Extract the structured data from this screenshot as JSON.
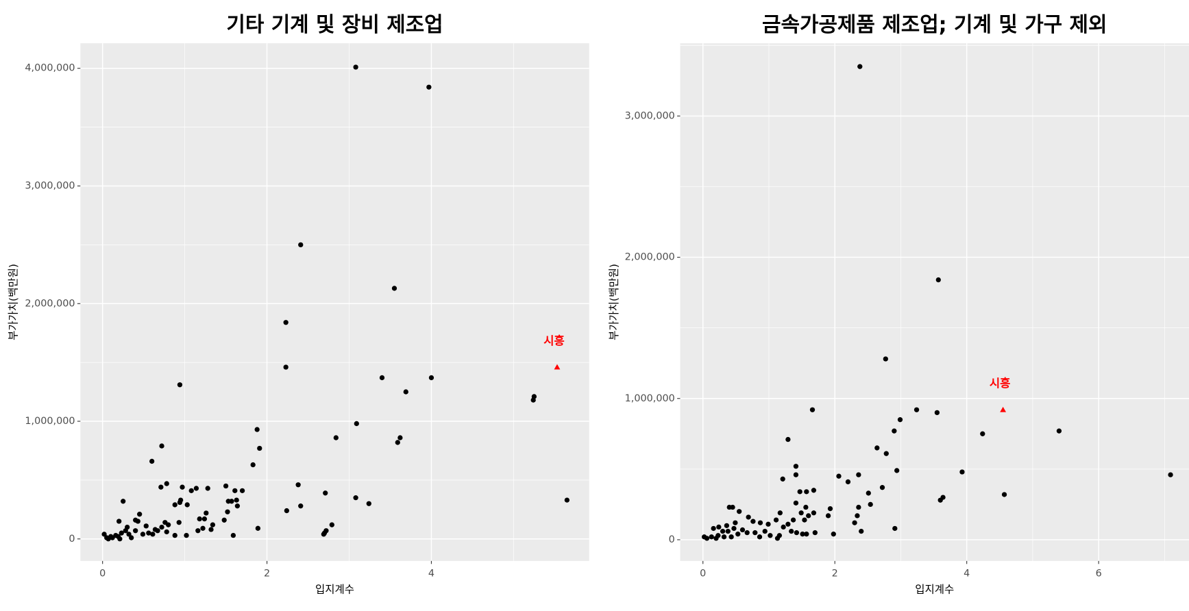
{
  "chart_data": [
    {
      "type": "scatter",
      "title": "기타 기계 및 장비 제조업",
      "x_label": "입지계수",
      "y_label": "부가가치(백만원)",
      "xlim": [
        -0.27,
        5.92
      ],
      "ylim": [
        -187000,
        4213000
      ],
      "xticks": [
        0,
        2,
        4
      ],
      "yticks": [
        0,
        {
          "value": 1000000,
          "label": "1,000,000"
        },
        {
          "value": 2000000,
          "label": "2,000,000"
        },
        {
          "value": 3000000,
          "label": "3,000,000"
        },
        {
          "value": 4000000,
          "label": "4,000,000"
        }
      ],
      "grid": true,
      "color": "#000000",
      "x": [
        3.08,
        3.97,
        2.41,
        3.55,
        2.23,
        2.23,
        0.94,
        3.4,
        4.0,
        3.69,
        5.24,
        5.25,
        3.09,
        1.88,
        1.91,
        0.72,
        2.84,
        3.62,
        3.59,
        1.83,
        0.6,
        5.65,
        3.08,
        3.24,
        2.38,
        2.41,
        2.24,
        2.71,
        2.79,
        2.7,
        2.72,
        2.69,
        1.89,
        1.59,
        1.5,
        1.61,
        1.7,
        1.63,
        1.53,
        1.57,
        1.64,
        1.52,
        1.48,
        1.28,
        1.14,
        1.08,
        0.78,
        0.71,
        0.97,
        0.95,
        1.03,
        0.88,
        0.94,
        1.26,
        1.24,
        1.18,
        1.34,
        1.32,
        1.22,
        1.16,
        1.02,
        0.93,
        0.88,
        0.8,
        0.76,
        0.72,
        0.78,
        0.67,
        0.64,
        0.61,
        0.56,
        0.53,
        0.45,
        0.43,
        0.4,
        0.25,
        0.2,
        0.3,
        0.28,
        0.23,
        0.19,
        0.16,
        0.1,
        0.05,
        0.02,
        0.07,
        0.12,
        0.32,
        0.4,
        0.35,
        0.21,
        0.49
      ],
      "values": [
        4010000,
        3840000,
        2500000,
        2130000,
        1840000,
        1460000,
        1310000,
        1370000,
        1370000,
        1250000,
        1180000,
        1210000,
        980000,
        930000,
        770000,
        790000,
        860000,
        860000,
        820000,
        630000,
        660000,
        330000,
        350000,
        300000,
        460000,
        280000,
        240000,
        390000,
        120000,
        50000,
        70000,
        40000,
        90000,
        30000,
        450000,
        410000,
        410000,
        330000,
        320000,
        320000,
        280000,
        230000,
        160000,
        430000,
        430000,
        410000,
        470000,
        440000,
        440000,
        330000,
        290000,
        290000,
        310000,
        220000,
        170000,
        170000,
        120000,
        80000,
        90000,
        70000,
        30000,
        140000,
        30000,
        120000,
        140000,
        100000,
        60000,
        70000,
        80000,
        40000,
        50000,
        110000,
        210000,
        150000,
        160000,
        320000,
        150000,
        100000,
        70000,
        50000,
        20000,
        30000,
        20000,
        10000,
        40000,
        0,
        10000,
        40000,
        70000,
        10000,
        0,
        40000
      ],
      "annotations": [
        {
          "text": "시흥",
          "x": 5.53,
          "y": 1460000,
          "color": "#ff0000"
        }
      ]
    },
    {
      "type": "scatter",
      "title": "금속가공제품 제조업; 기계 및 가구 제외",
      "x_label": "입지계수",
      "y_label": "부가가치(백만원)",
      "xlim": [
        -0.345,
        7.37
      ],
      "ylim": [
        -150000,
        3515000
      ],
      "xticks": [
        0,
        2,
        4,
        6
      ],
      "yticks": [
        0,
        {
          "value": 1000000,
          "label": "1,000,000"
        },
        {
          "value": 2000000,
          "label": "2,000,000"
        },
        {
          "value": 3000000,
          "label": "3,000,000"
        }
      ],
      "grid": true,
      "color": "#000000",
      "x": [
        2.38,
        3.57,
        2.77,
        1.66,
        3.24,
        3.55,
        2.99,
        2.9,
        4.24,
        5.4,
        1.29,
        2.64,
        2.78,
        1.41,
        2.94,
        3.93,
        7.09,
        1.41,
        2.06,
        2.36,
        2.2,
        1.21,
        2.72,
        1.68,
        4.57,
        3.64,
        3.6,
        2.51,
        1.47,
        1.57,
        2.54,
        2.36,
        1.93,
        1.56,
        1.41,
        2.34,
        1.9,
        1.68,
        1.49,
        1.6,
        1.54,
        2.3,
        1.37,
        1.29,
        1.34,
        1.42,
        1.51,
        1.57,
        1.7,
        2.4,
        2.91,
        1.98,
        1.17,
        1.11,
        1.22,
        1.16,
        0.87,
        0.99,
        0.94,
        1.02,
        0.4,
        0.45,
        0.55,
        0.69,
        0.76,
        0.49,
        0.36,
        0.24,
        0.16,
        0.3,
        0.38,
        0.47,
        0.6,
        0.67,
        0.79,
        0.53,
        0.43,
        0.32,
        0.23,
        0.13,
        0.06,
        0.02,
        0.2,
        0.86,
        1.13
      ],
      "values": [
        3350000,
        1840000,
        1280000,
        920000,
        920000,
        900000,
        850000,
        770000,
        750000,
        770000,
        710000,
        650000,
        610000,
        520000,
        490000,
        480000,
        460000,
        460000,
        450000,
        460000,
        410000,
        430000,
        370000,
        350000,
        320000,
        300000,
        280000,
        330000,
        340000,
        340000,
        250000,
        230000,
        220000,
        230000,
        260000,
        170000,
        170000,
        190000,
        190000,
        170000,
        140000,
        120000,
        140000,
        110000,
        60000,
        50000,
        40000,
        40000,
        50000,
        60000,
        80000,
        40000,
        190000,
        140000,
        90000,
        30000,
        120000,
        110000,
        60000,
        30000,
        230000,
        230000,
        200000,
        160000,
        130000,
        120000,
        100000,
        90000,
        80000,
        60000,
        60000,
        80000,
        70000,
        50000,
        50000,
        40000,
        20000,
        20000,
        30000,
        20000,
        10000,
        20000,
        10000,
        20000,
        10000
      ],
      "annotations": [
        {
          "text": "시흥",
          "x": 4.55,
          "y": 920000,
          "color": "#ff0000"
        }
      ]
    }
  ]
}
